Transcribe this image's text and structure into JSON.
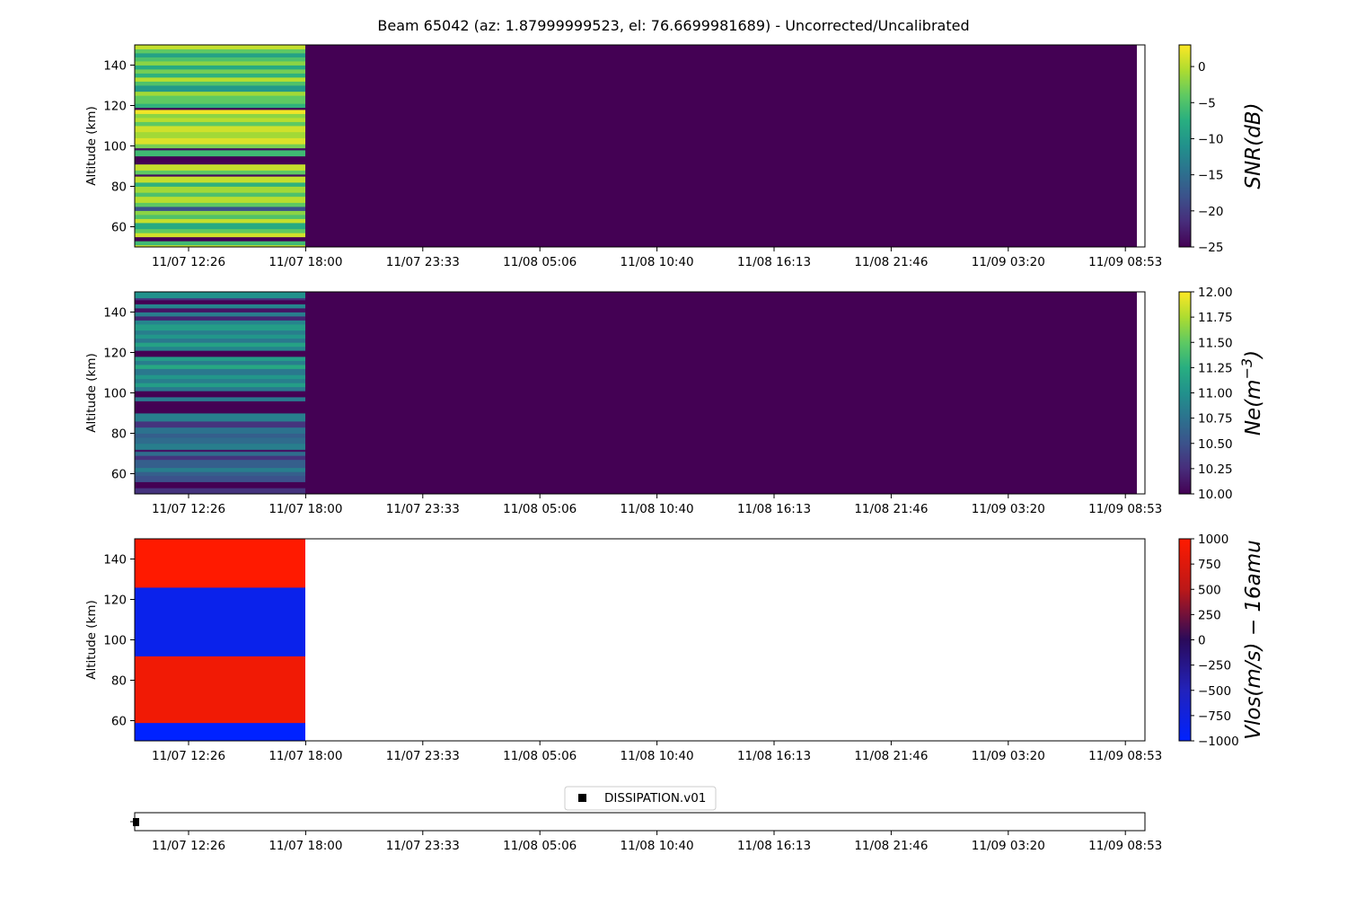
{
  "figure": {
    "title": "Beam 65042 (az: 1.87999999523, el: 76.6699981689) - Uncorrected/Uncalibrated"
  },
  "chart_data": [
    {
      "type": "heatmap",
      "id": "snr",
      "title": "",
      "xlabel": "",
      "ylabel": "Altitude (km)",
      "colorbar_label": "SNR(dB)",
      "colormap": "viridis",
      "ylim": [
        50,
        150
      ],
      "yticks": [
        60,
        80,
        100,
        120,
        140
      ],
      "clim": [
        -25,
        3
      ],
      "cbar_ticks": [
        -25,
        -20,
        -15,
        -10,
        -5,
        0
      ],
      "cbar_tick_labels": [
        "−25",
        "−20",
        "−15",
        "−10",
        "−5",
        "0"
      ],
      "xtick_labels": [
        "11/07 12:26",
        "11/07 18:00",
        "11/07 23:33",
        "11/08 05:06",
        "11/08 10:40",
        "11/08 16:13",
        "11/08 21:46",
        "11/09 03:20",
        "11/09 08:53"
      ],
      "data_region_end_label": "11/07 18:00",
      "background_value": -25,
      "rows": [
        {
          "y0": 50,
          "y1": 51,
          "v": 0.5
        },
        {
          "y0": 51,
          "y1": 53,
          "v": -6
        },
        {
          "y0": 53,
          "y1": 55,
          "v": -25
        },
        {
          "y0": 55,
          "y1": 57,
          "v": 1
        },
        {
          "y0": 57,
          "y1": 59,
          "v": -4
        },
        {
          "y0": 59,
          "y1": 62,
          "v": -8
        },
        {
          "y0": 62,
          "y1": 64,
          "v": 0.5
        },
        {
          "y0": 64,
          "y1": 66,
          "v": -5
        },
        {
          "y0": 66,
          "y1": 68,
          "v": -2
        },
        {
          "y0": 68,
          "y1": 70,
          "v": -18
        },
        {
          "y0": 70,
          "y1": 72,
          "v": -4
        },
        {
          "y0": 72,
          "y1": 75,
          "v": 0
        },
        {
          "y0": 75,
          "y1": 77,
          "v": -5
        },
        {
          "y0": 77,
          "y1": 80,
          "v": -1
        },
        {
          "y0": 80,
          "y1": 82,
          "v": -7
        },
        {
          "y0": 82,
          "y1": 85,
          "v": 0.5
        },
        {
          "y0": 85,
          "y1": 86,
          "v": -24
        },
        {
          "y0": 86,
          "y1": 88,
          "v": -4
        },
        {
          "y0": 88,
          "y1": 91,
          "v": 0.5
        },
        {
          "y0": 91,
          "y1": 95,
          "v": -25
        },
        {
          "y0": 95,
          "y1": 98,
          "v": -6
        },
        {
          "y0": 98,
          "y1": 99,
          "v": -24
        },
        {
          "y0": 99,
          "y1": 101,
          "v": -3
        },
        {
          "y0": 101,
          "y1": 104,
          "v": 1.5
        },
        {
          "y0": 104,
          "y1": 107,
          "v": -1
        },
        {
          "y0": 107,
          "y1": 110,
          "v": 1
        },
        {
          "y0": 110,
          "y1": 112,
          "v": -4
        },
        {
          "y0": 112,
          "y1": 114,
          "v": 0
        },
        {
          "y0": 114,
          "y1": 116,
          "v": -2
        },
        {
          "y0": 116,
          "y1": 118,
          "v": 2.5
        },
        {
          "y0": 118,
          "y1": 119,
          "v": -25
        },
        {
          "y0": 119,
          "y1": 121,
          "v": -7
        },
        {
          "y0": 121,
          "y1": 125,
          "v": -4
        },
        {
          "y0": 125,
          "y1": 127,
          "v": -1
        },
        {
          "y0": 127,
          "y1": 130,
          "v": -10
        },
        {
          "y0": 130,
          "y1": 132,
          "v": -5
        },
        {
          "y0": 132,
          "y1": 134,
          "v": 0
        },
        {
          "y0": 134,
          "y1": 136,
          "v": -7
        },
        {
          "y0": 136,
          "y1": 138,
          "v": -3
        },
        {
          "y0": 138,
          "y1": 140,
          "v": -8
        },
        {
          "y0": 140,
          "y1": 142,
          "v": -2
        },
        {
          "y0": 142,
          "y1": 144,
          "v": -5
        },
        {
          "y0": 144,
          "y1": 146,
          "v": -9
        },
        {
          "y0": 146,
          "y1": 148,
          "v": -4
        },
        {
          "y0": 148,
          "y1": 150,
          "v": 0.5
        }
      ]
    },
    {
      "type": "heatmap",
      "id": "ne",
      "title": "",
      "xlabel": "",
      "ylabel": "Altitude (km)",
      "colorbar_label": "Ne(m^-3)",
      "colormap": "viridis",
      "ylim": [
        50,
        150
      ],
      "yticks": [
        60,
        80,
        100,
        120,
        140
      ],
      "clim": [
        10,
        12
      ],
      "cbar_ticks": [
        10,
        10.25,
        10.5,
        10.75,
        11,
        11.25,
        11.5,
        11.75,
        12
      ],
      "cbar_tick_labels": [
        "10.00",
        "10.25",
        "10.50",
        "10.75",
        "11.00",
        "11.25",
        "11.50",
        "11.75",
        "12.00"
      ],
      "xtick_labels": [
        "11/07 12:26",
        "11/07 18:00",
        "11/07 23:33",
        "11/08 05:06",
        "11/08 10:40",
        "11/08 16:13",
        "11/08 21:46",
        "11/09 03:20",
        "11/09 08:53"
      ],
      "data_region_end_label": "11/07 18:00",
      "background_value": 10,
      "rows": [
        {
          "y0": 50,
          "y1": 53,
          "v": 10.3
        },
        {
          "y0": 53,
          "y1": 56,
          "v": 10
        },
        {
          "y0": 56,
          "y1": 59,
          "v": 10.5
        },
        {
          "y0": 59,
          "y1": 61,
          "v": 10.6
        },
        {
          "y0": 61,
          "y1": 63,
          "v": 10.85
        },
        {
          "y0": 63,
          "y1": 67,
          "v": 10.6
        },
        {
          "y0": 67,
          "y1": 69,
          "v": 10.3
        },
        {
          "y0": 69,
          "y1": 71,
          "v": 10.7
        },
        {
          "y0": 71,
          "y1": 72,
          "v": 10.1
        },
        {
          "y0": 72,
          "y1": 75,
          "v": 10.85
        },
        {
          "y0": 75,
          "y1": 78,
          "v": 10.7
        },
        {
          "y0": 78,
          "y1": 80,
          "v": 10.6
        },
        {
          "y0": 80,
          "y1": 83,
          "v": 10.75
        },
        {
          "y0": 83,
          "y1": 86,
          "v": 10.3
        },
        {
          "y0": 86,
          "y1": 90,
          "v": 10.85
        },
        {
          "y0": 90,
          "y1": 96,
          "v": 10
        },
        {
          "y0": 96,
          "y1": 98,
          "v": 10.8
        },
        {
          "y0": 98,
          "y1": 101,
          "v": 10
        },
        {
          "y0": 101,
          "y1": 103,
          "v": 10.8
        },
        {
          "y0": 103,
          "y1": 105,
          "v": 11.1
        },
        {
          "y0": 105,
          "y1": 107,
          "v": 10.85
        },
        {
          "y0": 107,
          "y1": 109,
          "v": 11.05
        },
        {
          "y0": 109,
          "y1": 112,
          "v": 10.8
        },
        {
          "y0": 112,
          "y1": 114,
          "v": 11.2
        },
        {
          "y0": 114,
          "y1": 116,
          "v": 10.85
        },
        {
          "y0": 116,
          "y1": 118,
          "v": 11.1
        },
        {
          "y0": 118,
          "y1": 121,
          "v": 10
        },
        {
          "y0": 121,
          "y1": 123,
          "v": 10.9
        },
        {
          "y0": 123,
          "y1": 125,
          "v": 11.15
        },
        {
          "y0": 125,
          "y1": 127,
          "v": 10.8
        },
        {
          "y0": 127,
          "y1": 129,
          "v": 11.05
        },
        {
          "y0": 129,
          "y1": 131,
          "v": 10.85
        },
        {
          "y0": 131,
          "y1": 134,
          "v": 11.1
        },
        {
          "y0": 134,
          "y1": 136,
          "v": 10.9
        },
        {
          "y0": 136,
          "y1": 138,
          "v": 10.2
        },
        {
          "y0": 138,
          "y1": 140,
          "v": 10.85
        },
        {
          "y0": 140,
          "y1": 142,
          "v": 10.1
        },
        {
          "y0": 142,
          "y1": 144,
          "v": 10.9
        },
        {
          "y0": 144,
          "y1": 146,
          "v": 10
        },
        {
          "y0": 146,
          "y1": 147,
          "v": 10.3
        },
        {
          "y0": 147,
          "y1": 150,
          "v": 11.0
        }
      ]
    },
    {
      "type": "heatmap",
      "id": "vlos",
      "title": "",
      "xlabel": "",
      "ylabel": "Altitude (km)",
      "colorbar_label": "Vlos(m/s) - 16amu",
      "colormap": "diverging-blue-red",
      "ylim": [
        50,
        150
      ],
      "yticks": [
        60,
        80,
        100,
        120,
        140
      ],
      "clim": [
        -1000,
        1000
      ],
      "cbar_ticks": [
        -1000,
        -750,
        -500,
        -250,
        0,
        250,
        500,
        750,
        1000
      ],
      "cbar_tick_labels": [
        "−1000",
        "−750",
        "−500",
        "−250",
        "0",
        "250",
        "500",
        "750",
        "1000"
      ],
      "xtick_labels": [
        "11/07 12:26",
        "11/07 18:00",
        "11/07 23:33",
        "11/08 05:06",
        "11/08 10:40",
        "11/08 16:13",
        "11/08 21:46",
        "11/09 03:20",
        "11/09 08:53"
      ],
      "data_region_end_label": "11/07 18:00",
      "background_value": null,
      "rows": [
        {
          "y0": 50,
          "y1": 59,
          "v": -1000
        },
        {
          "y0": 59,
          "y1": 92,
          "v": 900
        },
        {
          "y0": 92,
          "y1": 126,
          "v": -850
        },
        {
          "y0": 126,
          "y1": 150,
          "v": 1000
        }
      ]
    },
    {
      "type": "scatter",
      "id": "dissipation",
      "title": "",
      "xlabel": "",
      "ylabel": "",
      "legend": [
        "DISSIPATION.v01"
      ],
      "legend_position": "top-center",
      "xtick_labels": [
        "11/07 12:26",
        "11/07 18:00",
        "11/07 23:33",
        "11/08 05:06",
        "11/08 10:40",
        "11/08 16:13",
        "11/08 21:46",
        "11/09 03:20",
        "11/09 08:53"
      ],
      "marker": "square",
      "marker_color": "#000000",
      "points_at_x_start": 1
    }
  ]
}
